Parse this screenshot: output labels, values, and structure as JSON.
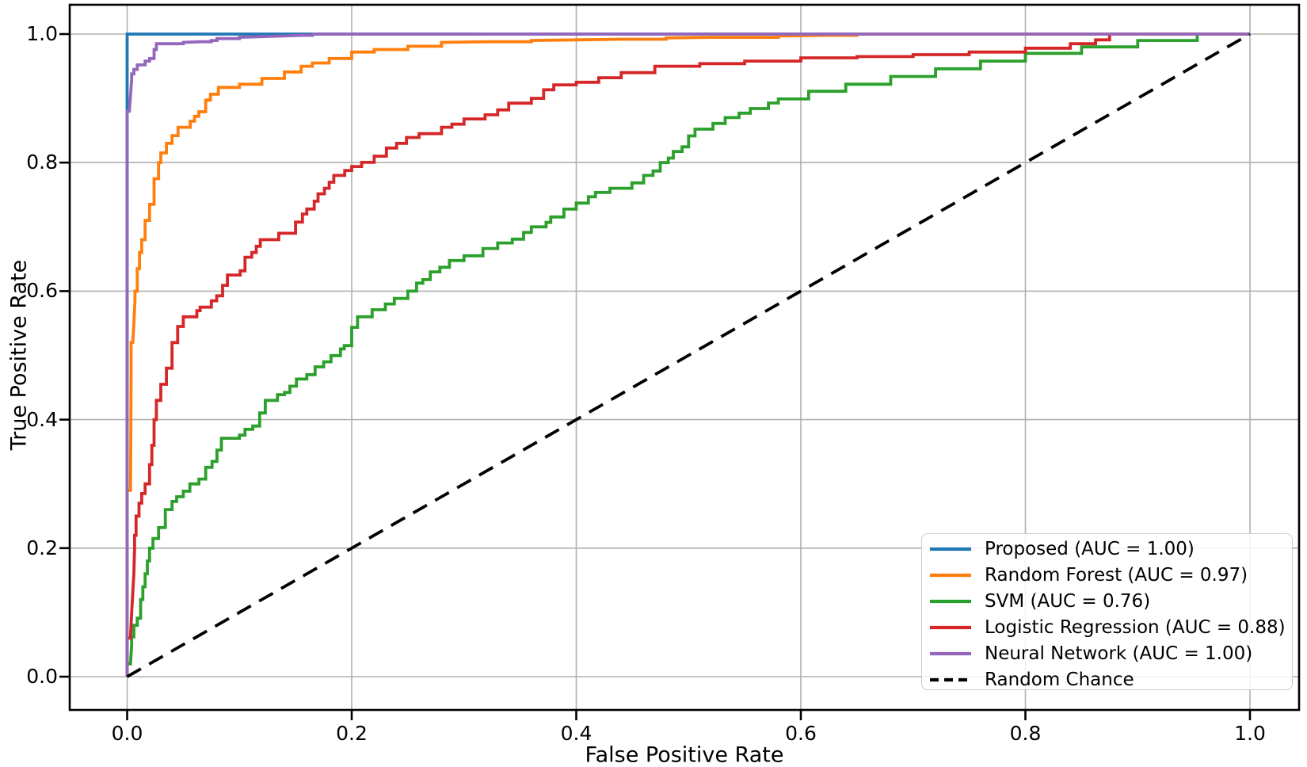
{
  "chart_data": {
    "type": "line",
    "title": "",
    "xlabel": "False Positive Rate",
    "ylabel": "True Positive Rate",
    "xlim": [
      -0.05,
      1.04
    ],
    "ylim": [
      -0.05,
      1.04
    ],
    "grid": true,
    "grid_color": "#b0b0b0",
    "legend_position": "lower right",
    "x_ticks": [
      "0.0",
      "0.2",
      "0.4",
      "0.6",
      "0.8",
      "1.0"
    ],
    "y_ticks": [
      "0.0",
      "0.2",
      "0.4",
      "0.6",
      "0.8",
      "1.0"
    ],
    "series": [
      {
        "name": "proposed",
        "legend_label": "Proposed (AUC = 1.00)",
        "auc": 1.0,
        "color": "#1f77b4",
        "dashed": false,
        "style": "line",
        "points": [
          [
            0,
            0
          ],
          [
            0,
            1
          ],
          [
            1,
            1
          ]
        ]
      },
      {
        "name": "random-forest",
        "legend_label": "Random Forest (AUC = 0.97)",
        "auc": 0.97,
        "color": "#ff7f0e",
        "dashed": false,
        "style": "step",
        "points": [
          [
            0,
            0
          ],
          [
            0,
            0.29
          ],
          [
            0.003,
            0.295
          ],
          [
            0.0035,
            0.47
          ],
          [
            0.005,
            0.52
          ],
          [
            0.006,
            0.55
          ],
          [
            0.007,
            0.585
          ],
          [
            0.009,
            0.6
          ],
          [
            0.011,
            0.635
          ],
          [
            0.013,
            0.66
          ],
          [
            0.016,
            0.68
          ],
          [
            0.02,
            0.71
          ],
          [
            0.024,
            0.735
          ],
          [
            0.028,
            0.775
          ],
          [
            0.03,
            0.8
          ],
          [
            0.035,
            0.815
          ],
          [
            0.04,
            0.83
          ],
          [
            0.05,
            0.855
          ],
          [
            0.06,
            0.872
          ],
          [
            0.07,
            0.886
          ],
          [
            0.085,
            0.917
          ],
          [
            0.1,
            0.922
          ],
          [
            0.12,
            0.931
          ],
          [
            0.14,
            0.941
          ],
          [
            0.155,
            0.95
          ],
          [
            0.165,
            0.955
          ],
          [
            0.18,
            0.962
          ],
          [
            0.2,
            0.972
          ],
          [
            0.22,
            0.976
          ],
          [
            0.25,
            0.981
          ],
          [
            0.28,
            0.987
          ],
          [
            0.32,
            0.988
          ],
          [
            0.36,
            0.99
          ],
          [
            0.4,
            0.991
          ],
          [
            0.44,
            0.992
          ],
          [
            0.48,
            0.994
          ],
          [
            0.52,
            0.995
          ],
          [
            0.58,
            0.997
          ],
          [
            0.62,
            0.998
          ],
          [
            0.65,
            1
          ],
          [
            1,
            1
          ]
        ]
      },
      {
        "name": "svm",
        "legend_label": "SVM (AUC = 0.76)",
        "auc": 0.76,
        "color": "#2ca02c",
        "dashed": false,
        "style": "step",
        "points": [
          [
            0,
            0
          ],
          [
            0,
            0.02
          ],
          [
            0.003,
            0.022
          ],
          [
            0.004,
            0.05
          ],
          [
            0.006,
            0.062
          ],
          [
            0.009,
            0.08
          ],
          [
            0.012,
            0.091
          ],
          [
            0.014,
            0.12
          ],
          [
            0.016,
            0.14
          ],
          [
            0.018,
            0.16
          ],
          [
            0.02,
            0.18
          ],
          [
            0.023,
            0.2
          ],
          [
            0.028,
            0.215
          ],
          [
            0.034,
            0.232
          ],
          [
            0.04,
            0.26
          ],
          [
            0.05,
            0.28
          ],
          [
            0.06,
            0.3
          ],
          [
            0.07,
            0.315
          ],
          [
            0.08,
            0.335
          ],
          [
            0.092,
            0.371
          ],
          [
            0.105,
            0.385
          ],
          [
            0.118,
            0.4
          ],
          [
            0.13,
            0.43
          ],
          [
            0.145,
            0.452
          ],
          [
            0.16,
            0.47
          ],
          [
            0.175,
            0.49
          ],
          [
            0.19,
            0.51
          ],
          [
            0.2,
            0.525
          ],
          [
            0.21,
            0.56
          ],
          [
            0.23,
            0.58
          ],
          [
            0.25,
            0.6
          ],
          [
            0.27,
            0.63
          ],
          [
            0.3,
            0.655
          ],
          [
            0.33,
            0.675
          ],
          [
            0.36,
            0.7
          ],
          [
            0.4,
            0.737
          ],
          [
            0.43,
            0.76
          ],
          [
            0.46,
            0.78
          ],
          [
            0.482,
            0.807
          ],
          [
            0.5,
            0.83
          ],
          [
            0.512,
            0.852
          ],
          [
            0.545,
            0.877
          ],
          [
            0.58,
            0.899
          ],
          [
            0.607,
            0.911
          ],
          [
            0.64,
            0.922
          ],
          [
            0.68,
            0.934
          ],
          [
            0.72,
            0.946
          ],
          [
            0.76,
            0.958
          ],
          [
            0.8,
            0.97
          ],
          [
            0.85,
            0.98
          ],
          [
            0.9,
            0.99
          ],
          [
            0.953,
            1
          ],
          [
            1,
            1
          ]
        ]
      },
      {
        "name": "logistic-regression",
        "legend_label": "Logistic Regression (AUC = 0.88)",
        "auc": 0.88,
        "color": "#d62728",
        "dashed": false,
        "style": "step",
        "points": [
          [
            0,
            0
          ],
          [
            0,
            0.06
          ],
          [
            0.003,
            0.063
          ],
          [
            0.004,
            0.1
          ],
          [
            0.005,
            0.13
          ],
          [
            0.006,
            0.16
          ],
          [
            0.0066,
            0.2
          ],
          [
            0.008,
            0.22
          ],
          [
            0.0106,
            0.25
          ],
          [
            0.013,
            0.27
          ],
          [
            0.016,
            0.285
          ],
          [
            0.02,
            0.3
          ],
          [
            0.022,
            0.33
          ],
          [
            0.024,
            0.36
          ],
          [
            0.026,
            0.4
          ],
          [
            0.03,
            0.43
          ],
          [
            0.035,
            0.455
          ],
          [
            0.04,
            0.48
          ],
          [
            0.045,
            0.52
          ],
          [
            0.05,
            0.545
          ],
          [
            0.056,
            0.56
          ],
          [
            0.065,
            0.575
          ],
          [
            0.075,
            0.585
          ],
          [
            0.085,
            0.6
          ],
          [
            0.095,
            0.625
          ],
          [
            0.105,
            0.64
          ],
          [
            0.115,
            0.66
          ],
          [
            0.125,
            0.68
          ],
          [
            0.135,
            0.69
          ],
          [
            0.15,
            0.7
          ],
          [
            0.16,
            0.72
          ],
          [
            0.17,
            0.74
          ],
          [
            0.18,
            0.76
          ],
          [
            0.19,
            0.78
          ],
          [
            0.2,
            0.794
          ],
          [
            0.22,
            0.81
          ],
          [
            0.24,
            0.83
          ],
          [
            0.26,
            0.845
          ],
          [
            0.28,
            0.855
          ],
          [
            0.3,
            0.868
          ],
          [
            0.33,
            0.882
          ],
          [
            0.36,
            0.9
          ],
          [
            0.38,
            0.921
          ],
          [
            0.4,
            0.925
          ],
          [
            0.42,
            0.932
          ],
          [
            0.44,
            0.94
          ],
          [
            0.47,
            0.95
          ],
          [
            0.51,
            0.954
          ],
          [
            0.55,
            0.958
          ],
          [
            0.6,
            0.963
          ],
          [
            0.65,
            0.965
          ],
          [
            0.7,
            0.968
          ],
          [
            0.75,
            0.972
          ],
          [
            0.8,
            0.978
          ],
          [
            0.84,
            0.985
          ],
          [
            0.875,
            1
          ],
          [
            1,
            1
          ]
        ]
      },
      {
        "name": "neural-network",
        "legend_label": "Neural Network (AUC = 1.00)",
        "auc": 1.0,
        "color": "#9467bd",
        "dashed": false,
        "style": "step",
        "points": [
          [
            0,
            0
          ],
          [
            0,
            0.868
          ],
          [
            0.002,
            0.88
          ],
          [
            0.003,
            0.905
          ],
          [
            0.004,
            0.93
          ],
          [
            0.006,
            0.938
          ],
          [
            0.009,
            0.945
          ],
          [
            0.012,
            0.952
          ],
          [
            0.016,
            0.958
          ],
          [
            0.02,
            0.962
          ],
          [
            0.024,
            0.968
          ],
          [
            0.026,
            0.976
          ],
          [
            0.028,
            0.985
          ],
          [
            0.05,
            0.987
          ],
          [
            0.065,
            0.988
          ],
          [
            0.075,
            0.99
          ],
          [
            0.08,
            0.993
          ],
          [
            0.1,
            0.995
          ],
          [
            0.12,
            0.996
          ],
          [
            0.14,
            0.997
          ],
          [
            0.155,
            0.998
          ],
          [
            0.165,
            1
          ],
          [
            1,
            1
          ]
        ]
      },
      {
        "name": "random-chance",
        "legend_label": "Random Chance",
        "auc": null,
        "color": "#000000",
        "dashed": true,
        "style": "line",
        "points": [
          [
            0,
            0
          ],
          [
            1,
            1
          ]
        ]
      }
    ]
  }
}
